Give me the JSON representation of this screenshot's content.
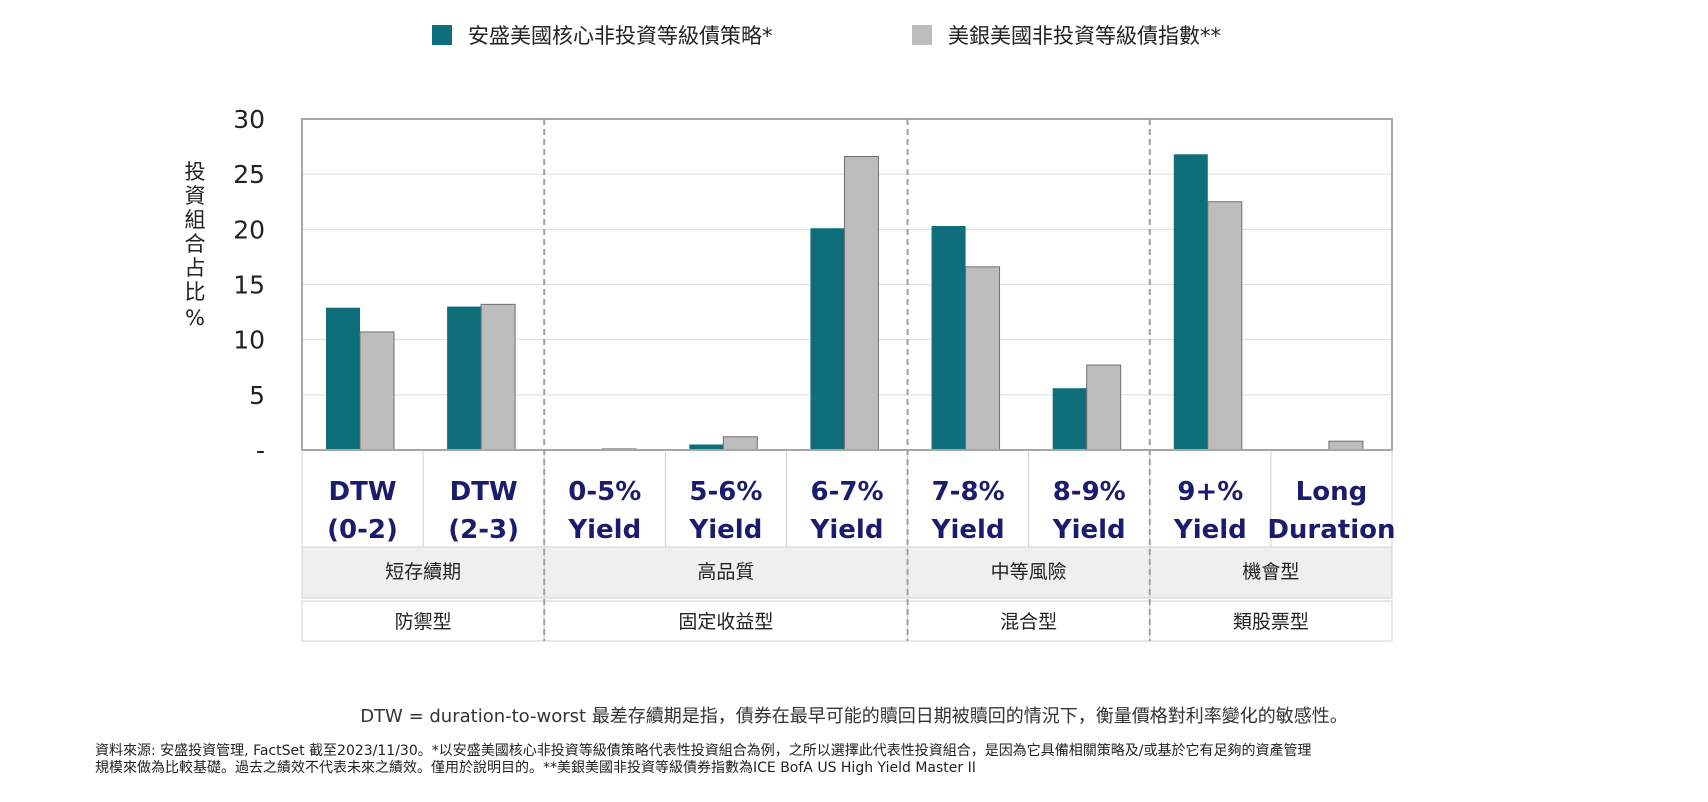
{
  "legend": {
    "series1": "安盛美國核心非投資等級債策略*",
    "series2": "美銀美國非投資等級債指數**"
  },
  "colors": {
    "series1": "#0e6e7a",
    "series2": "#bdbdbd",
    "category_text": "#1c1c6e",
    "grid": "#dedede",
    "frame": "#a6a6a6"
  },
  "chart_data": {
    "type": "bar",
    "ylabel": "投資組合占比 %",
    "ylim": [
      0,
      30
    ],
    "y_ticks": [
      "-",
      "5",
      "10",
      "15",
      "20",
      "25",
      "30"
    ],
    "categories": [
      [
        "DTW",
        "(0-2)"
      ],
      [
        "DTW",
        "(2-3)"
      ],
      [
        "0-5%",
        "Yield"
      ],
      [
        "5-6%",
        "Yield"
      ],
      [
        "6-7%",
        "Yield"
      ],
      [
        "7-8%",
        "Yield"
      ],
      [
        "8-9%",
        "Yield"
      ],
      [
        "9+%",
        "Yield"
      ],
      [
        "Long",
        "Duration"
      ]
    ],
    "series": [
      {
        "name": "安盛美國核心非投資等級債策略*",
        "values": [
          12.9,
          13.0,
          0,
          0.5,
          20.1,
          20.3,
          5.6,
          26.8,
          0
        ]
      },
      {
        "name": "美銀美國非投資等級債指數**",
        "values": [
          10.7,
          13.2,
          0.1,
          1.2,
          26.6,
          16.6,
          7.7,
          22.5,
          0.8
        ]
      }
    ],
    "groups": [
      {
        "sub": "短存續期",
        "main": "防禦型",
        "span": [
          0,
          1
        ]
      },
      {
        "sub": "高品質",
        "main": "固定收益型",
        "span": [
          2,
          4
        ]
      },
      {
        "sub": "中等風險",
        "main": "混合型",
        "span": [
          5,
          6
        ]
      },
      {
        "sub": "機會型",
        "main": "類股票型",
        "span": [
          7,
          8
        ]
      }
    ],
    "grid": true,
    "legend_position": "top"
  },
  "footnote": "DTW = duration-to-worst 最差存續期是指，債券在最早可能的贖回日期被贖回的情況下，衡量價格對利率變化的敏感性。",
  "source_line1": "資料來源: 安盛投資管理, FactSet 截至2023/11/30。*以安盛美國核心非投資等級債策略代表性投資組合為例，之所以選擇此代表性投資組合，是因為它具備相關策略及/或基於它有足夠的資產管理",
  "source_line2": "規模來做為比較基礎。過去之績效不代表未來之績效。僅用於說明目的。**美銀美國非投資等級債券指數為ICE BofA US High Yield Master II"
}
